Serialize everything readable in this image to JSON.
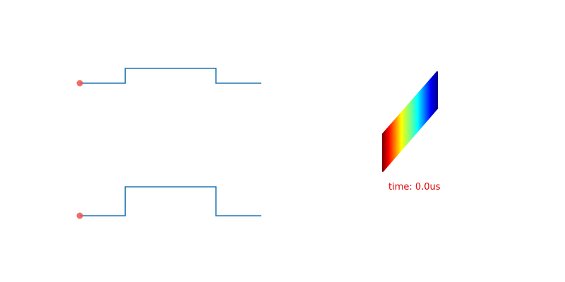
{
  "colors": {
    "trace": "#1f77b4",
    "marker": "#ef5350",
    "time_label": "#e00000",
    "background": "#ffffff"
  },
  "chart_data": [
    {
      "type": "line",
      "title": "",
      "xlabel": "",
      "ylabel": "",
      "grid": false,
      "axes_visible": false,
      "x": [
        0,
        1,
        1,
        3,
        3,
        4
      ],
      "values": [
        0,
        0,
        1,
        1,
        0,
        0
      ],
      "xlim": [
        0,
        4
      ],
      "ylim": [
        0,
        1
      ],
      "marker_point": {
        "x": 0,
        "y": 0
      }
    },
    {
      "type": "line",
      "title": "",
      "xlabel": "",
      "ylabel": "",
      "grid": false,
      "axes_visible": false,
      "x": [
        0,
        1,
        1,
        3,
        3,
        4
      ],
      "values": [
        0,
        0,
        2,
        2,
        0,
        0
      ],
      "xlim": [
        0,
        4
      ],
      "ylim": [
        0,
        2
      ],
      "marker_point": {
        "x": 0,
        "y": 0
      }
    },
    {
      "type": "heatmap",
      "title": "",
      "colormap": "jet",
      "color_range": [
        0,
        1
      ],
      "color_direction": "red-left-to-blue-right",
      "time_label": "time: 0.0us"
    }
  ]
}
